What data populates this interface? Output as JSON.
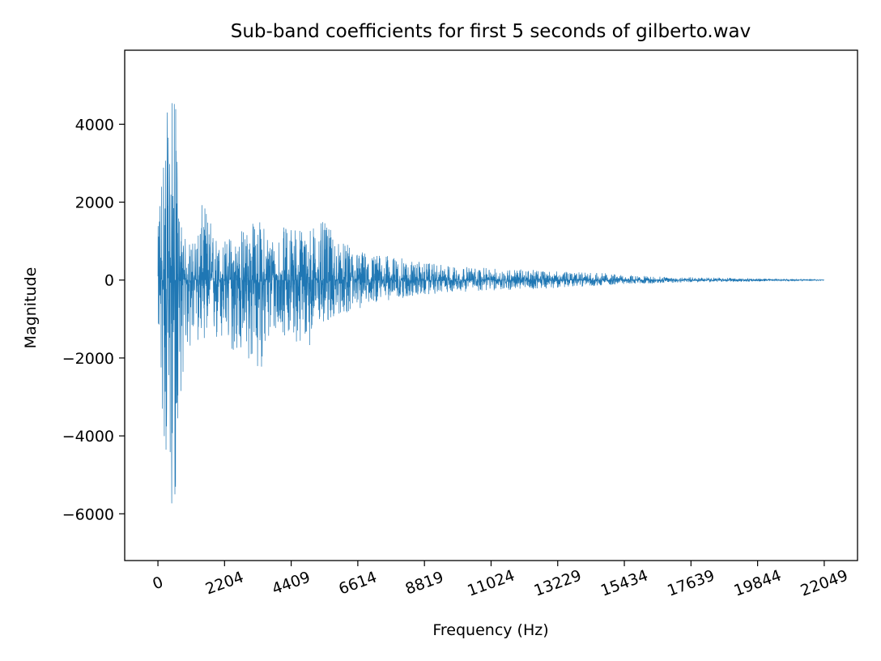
{
  "chart_data": {
    "type": "line",
    "title": "Sub-band coefficients for first 5 seconds of gilberto.wav",
    "xlabel": "Frequency (Hz)",
    "ylabel": "Magnitude",
    "xlim": [
      -1100,
      23150
    ],
    "ylim": [
      -7200,
      5900
    ],
    "x_ticks": [
      0,
      2204,
      4409,
      6614,
      8819,
      11024,
      13229,
      15434,
      17639,
      19844,
      22049
    ],
    "x_tick_labels": [
      "0",
      "2204",
      "4409",
      "6614",
      "8819",
      "11024",
      "13229",
      "15434",
      "17639",
      "19844",
      "22049"
    ],
    "y_ticks": [
      -6000,
      -4000,
      -2000,
      0,
      2000,
      4000
    ],
    "y_tick_labels": [
      "−6000",
      "−4000",
      "−2000",
      "0",
      "2000",
      "4000"
    ],
    "grid": false,
    "series": [
      {
        "color": "#1f77b4",
        "x_range": [
          0,
          22049
        ],
        "envelope": {
          "x": [
            0,
            150,
            300,
            450,
            550,
            700,
            900,
            1200,
            1500,
            2000,
            2500,
            3000,
            3300,
            3800,
            4400,
            4800,
            5500,
            6000,
            6600,
            7000,
            7800,
            8800,
            9500,
            11024,
            12000,
            13229,
            14000,
            14800,
            15434,
            16500,
            17639,
            19000,
            19844,
            21000,
            22049
          ],
          "upper": [
            1300,
            4100,
            4300,
            4700,
            5350,
            1900,
            1100,
            1000,
            2100,
            1000,
            1200,
            1500,
            1600,
            1200,
            1500,
            1400,
            1500,
            1000,
            800,
            700,
            600,
            450,
            380,
            300,
            280,
            220,
            200,
            180,
            120,
            90,
            70,
            60,
            40,
            25,
            10
          ],
          "lower": [
            -1200,
            -3800,
            -5400,
            -5900,
            -6600,
            -3300,
            -2000,
            -1700,
            -1500,
            -1800,
            -1900,
            -2200,
            -2500,
            -1500,
            -1400,
            -1900,
            -1200,
            -900,
            -800,
            -600,
            -500,
            -400,
            -320,
            -280,
            -250,
            -200,
            -170,
            -140,
            -100,
            -80,
            -60,
            -50,
            -35,
            -20,
            -10
          ]
        }
      }
    ]
  }
}
